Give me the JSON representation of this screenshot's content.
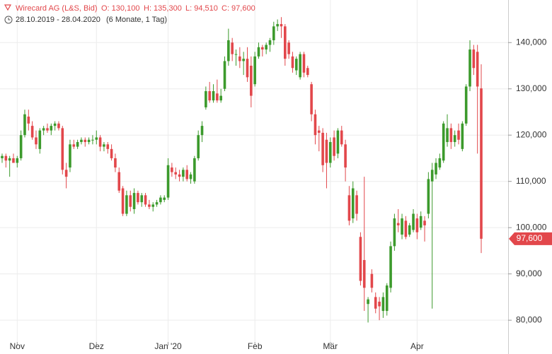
{
  "chart_data": {
    "type": "candlestick",
    "header": {
      "title": "Wirecard AG (L&S, Bid)",
      "open_text": "O: 130,100",
      "high_text": "H: 135,300",
      "low_text": "L: 94,510",
      "close_text": "C: 97,600",
      "range": "28.10.2019 - 28.04.2020",
      "period": "(6 Monate, 1 Tag)"
    },
    "categories": [
      null,
      null,
      null,
      null,
      "Nov",
      null,
      null,
      null,
      null,
      null,
      null,
      null,
      null,
      null,
      null,
      null,
      null,
      null,
      null,
      null,
      null,
      null,
      null,
      null,
      null,
      "Dez",
      null,
      null,
      null,
      null,
      null,
      null,
      null,
      null,
      null,
      null,
      null,
      null,
      null,
      null,
      null,
      null,
      null,
      null,
      "Jan '20",
      null,
      null,
      null,
      null,
      null,
      null,
      null,
      null,
      null,
      null,
      null,
      null,
      null,
      null,
      null,
      null,
      null,
      null,
      null,
      null,
      null,
      null,
      "Feb",
      null,
      null,
      null,
      null,
      null,
      null,
      null,
      null,
      null,
      null,
      null,
      null,
      null,
      null,
      null,
      null,
      null,
      null,
      null,
      "Mär",
      null,
      null,
      null,
      null,
      null,
      null,
      null,
      null,
      null,
      null,
      null,
      null,
      null,
      null,
      null,
      null,
      null,
      null,
      null,
      null,
      null,
      null,
      "Apr",
      null,
      null,
      null,
      null,
      null,
      null,
      null,
      null,
      null,
      null,
      null,
      null,
      null,
      null,
      null,
      null,
      null
    ],
    "open": [
      115000,
      115500,
      114500,
      115000,
      114000,
      115000,
      120000,
      124000,
      122000,
      119500,
      117000,
      121000,
      121500,
      121000,
      122000,
      122500,
      121500,
      112500,
      113000,
      118000,
      117500,
      118500,
      119000,
      118500,
      119000,
      119000,
      119500,
      117500,
      118000,
      117000,
      115000,
      112000,
      108500,
      103000,
      107000,
      104000,
      107500,
      105500,
      107000,
      105000,
      104500,
      105000,
      105500,
      106000,
      106500,
      113000,
      112000,
      111500,
      111000,
      112500,
      110500,
      110000,
      115000,
      120000,
      126000,
      129500,
      127500,
      129000,
      127500,
      130000,
      136000,
      140000,
      137500,
      137000,
      136000,
      136500,
      135000,
      131000,
      137000,
      139000,
      138500,
      139500,
      140500,
      143500,
      144000,
      143500,
      140000,
      137000,
      134000,
      132500,
      137500,
      134500,
      131000,
      124500,
      121000,
      120500,
      119000,
      114000,
      119500,
      116000,
      121000,
      118000,
      107000,
      102000,
      107000,
      98000,
      93000,
      83500,
      90000,
      85000,
      84000,
      82000,
      82000,
      87000,
      96000,
      101000,
      98500,
      101500,
      98500,
      99500,
      102000,
      100000,
      101500,
      103000,
      110000,
      111500,
      113000,
      114500,
      118500,
      121500,
      118500,
      121000,
      117000,
      122500,
      130500,
      138500,
      138000,
      130100
    ],
    "high": [
      116000,
      116000,
      115500,
      116000,
      115500,
      121000,
      125500,
      125500,
      123000,
      121000,
      121500,
      122000,
      122500,
      122500,
      123000,
      123000,
      122000,
      114000,
      119000,
      119000,
      119000,
      119500,
      119500,
      119500,
      120000,
      121000,
      120000,
      118500,
      118500,
      118000,
      116000,
      113000,
      109000,
      108000,
      108000,
      108500,
      108000,
      107500,
      107500,
      106000,
      105500,
      106000,
      107000,
      107000,
      115000,
      114000,
      113000,
      112500,
      113000,
      113500,
      112000,
      115500,
      121000,
      123000,
      130500,
      131500,
      131000,
      132000,
      130000,
      137000,
      143000,
      141000,
      138500,
      139000,
      138000,
      139000,
      137000,
      138000,
      140000,
      139500,
      140000,
      141000,
      144500,
      145000,
      145500,
      144000,
      140500,
      138000,
      137000,
      138000,
      138000,
      135000,
      131500,
      125500,
      122000,
      121500,
      120500,
      119500,
      121000,
      121500,
      122000,
      119000,
      109000,
      110000,
      108000,
      99000,
      111000,
      85000,
      91000,
      86000,
      85000,
      86000,
      88000,
      97000,
      103000,
      104000,
      103000,
      102500,
      101000,
      104000,
      103000,
      103500,
      102500,
      112000,
      114000,
      115000,
      116000,
      123000,
      124500,
      122500,
      121000,
      122500,
      123000,
      131000,
      140500,
      139500,
      139500,
      135300
    ],
    "low": [
      114000,
      113000,
      111000,
      114000,
      113000,
      114500,
      119500,
      121000,
      119000,
      117000,
      116000,
      120000,
      120500,
      120000,
      121000,
      121000,
      111500,
      108500,
      112000,
      117000,
      117000,
      118000,
      117500,
      118000,
      118000,
      118000,
      116500,
      116500,
      116000,
      114500,
      112000,
      107500,
      102500,
      102500,
      103500,
      103000,
      105000,
      104500,
      104500,
      104000,
      103500,
      104500,
      105000,
      105500,
      106000,
      111000,
      110500,
      110000,
      110000,
      110000,
      109500,
      109500,
      114500,
      118500,
      125500,
      127000,
      127000,
      127000,
      127000,
      129500,
      135000,
      136000,
      135000,
      134500,
      133000,
      131500,
      126000,
      130500,
      136500,
      137000,
      137500,
      138000,
      139500,
      142500,
      141000,
      135000,
      136500,
      133500,
      133000,
      132000,
      132500,
      132500,
      123000,
      118000,
      116500,
      112000,
      108500,
      113000,
      114500,
      115000,
      117500,
      110000,
      100500,
      101000,
      101500,
      87500,
      82000,
      79500,
      86000,
      81500,
      80000,
      80500,
      81000,
      86000,
      95000,
      99000,
      97500,
      97500,
      98000,
      99000,
      97500,
      99500,
      97000,
      102000,
      82500,
      110500,
      112500,
      114000,
      117500,
      117000,
      117500,
      118000,
      116500,
      122000,
      129500,
      133000,
      116000,
      94510
    ],
    "close": [
      115500,
      114500,
      115000,
      114000,
      115000,
      120000,
      124500,
      122500,
      119500,
      118000,
      121000,
      121500,
      121000,
      122000,
      122500,
      121500,
      112500,
      111000,
      118000,
      117500,
      118500,
      119000,
      118500,
      119000,
      119000,
      119500,
      117500,
      118000,
      117000,
      115000,
      113000,
      108000,
      103000,
      107000,
      104500,
      107500,
      105500,
      107000,
      105000,
      104500,
      105000,
      105500,
      106500,
      106500,
      113500,
      112000,
      111500,
      111000,
      112500,
      110500,
      111500,
      115000,
      120000,
      122000,
      129500,
      127500,
      129500,
      127500,
      128500,
      136000,
      140500,
      137500,
      137500,
      136000,
      136500,
      132500,
      128500,
      137000,
      139000,
      138500,
      139500,
      140500,
      143500,
      144000,
      143500,
      136500,
      137500,
      134500,
      136500,
      137500,
      133500,
      133000,
      124500,
      120000,
      120500,
      113500,
      114000,
      118500,
      115500,
      121000,
      118000,
      113000,
      101500,
      108500,
      103000,
      88500,
      87000,
      84500,
      87000,
      82500,
      83000,
      85000,
      87500,
      96000,
      102000,
      100500,
      102000,
      98000,
      100500,
      103000,
      99000,
      102500,
      100500,
      110500,
      112500,
      114000,
      115000,
      122500,
      121500,
      118500,
      120000,
      119000,
      122500,
      130500,
      138500,
      134500,
      130500,
      97600
    ],
    "last_price_label": "97,600",
    "up_color": "#3c9a2c",
    "down_color": "#e2474b",
    "ylim": [
      75900,
      149200
    ],
    "yticks": [
      {
        "value": 80000,
        "label": "80,000"
      },
      {
        "value": 90000,
        "label": "90,000"
      },
      {
        "value": 100000,
        "label": "100,000"
      },
      {
        "value": 110000,
        "label": "110,000"
      },
      {
        "value": 120000,
        "label": "120,000"
      },
      {
        "value": 130000,
        "label": "130,000"
      },
      {
        "value": 140000,
        "label": "140,000"
      }
    ],
    "grid": true
  }
}
